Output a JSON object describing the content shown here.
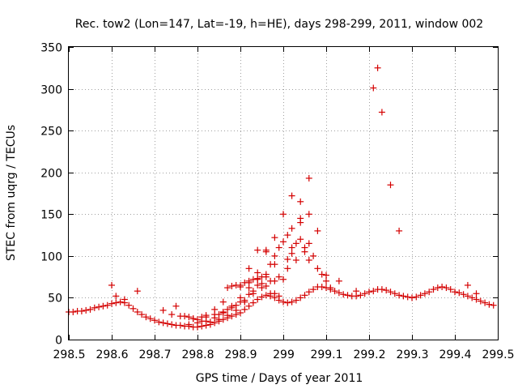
{
  "chart_data": {
    "type": "scatter",
    "title": "Rec. tow2 (Lon=147, Lat=-19, h=HE), days 298-299, 2011, window 002",
    "xlabel": "GPS time / Days of year 2011",
    "ylabel": "STEC from uqrg / TECUs",
    "xlim": [
      298.5,
      299.5
    ],
    "ylim": [
      0,
      350
    ],
    "xticks": [
      298.5,
      298.6,
      298.7,
      298.8,
      298.9,
      299,
      299.1,
      299.2,
      299.3,
      299.4,
      299.5
    ],
    "xtick_labels": [
      "298.5",
      "298.6",
      "298.7",
      "298.8",
      "298.9",
      "299",
      "299.1",
      "299.2",
      "299.3",
      "299.4",
      "299.5"
    ],
    "yticks": [
      0,
      50,
      100,
      150,
      200,
      250,
      300,
      350
    ],
    "ytick_labels": [
      "0",
      "50",
      "100",
      "150",
      "200",
      "250",
      "300",
      "350"
    ],
    "grid": true,
    "marker": "+",
    "color": "#d40000",
    "x": [
      298.5,
      298.51,
      298.52,
      298.53,
      298.54,
      298.55,
      298.56,
      298.57,
      298.58,
      298.59,
      298.6,
      298.61,
      298.62,
      298.63,
      298.64,
      298.65,
      298.66,
      298.67,
      298.68,
      298.69,
      298.7,
      298.71,
      298.72,
      298.73,
      298.74,
      298.75,
      298.76,
      298.77,
      298.78,
      298.79,
      298.8,
      298.81,
      298.82,
      298.83,
      298.84,
      298.85,
      298.86,
      298.87,
      298.88,
      298.89,
      298.9,
      298.91,
      298.92,
      298.93,
      298.94,
      298.95,
      298.96,
      298.97,
      298.98,
      298.99,
      299.0,
      299.01,
      299.02,
      299.03,
      299.04,
      299.05,
      299.06,
      299.07,
      299.08,
      299.09,
      299.1,
      299.11,
      299.12,
      299.13,
      299.14,
      299.15,
      299.16,
      299.17,
      299.18,
      299.19,
      299.2,
      299.21,
      299.22,
      299.23,
      299.24,
      299.25,
      299.26,
      299.27,
      299.28,
      299.29,
      299.3,
      299.31,
      299.32,
      299.33,
      299.34,
      299.35,
      299.36,
      299.37,
      299.38,
      299.39,
      299.4,
      299.41,
      299.42,
      299.43,
      299.44,
      299.45,
      299.46,
      299.47,
      299.48,
      299.49,
      298.6,
      298.61,
      298.63,
      298.66,
      298.72,
      298.74,
      298.76,
      298.78,
      298.79,
      298.81,
      298.82,
      298.84,
      298.86,
      298.87,
      298.88,
      298.89,
      298.9,
      298.91,
      298.92,
      298.93,
      298.94,
      298.95,
      298.96,
      298.97,
      298.98,
      298.99,
      299.0,
      299.01,
      299.02,
      299.03,
      299.04,
      299.05,
      299.06,
      298.85,
      298.87,
      298.89,
      298.91,
      298.93,
      298.95,
      298.97,
      298.99,
      299.01,
      299.03,
      299.05,
      299.07,
      299.09,
      299.11,
      298.92,
      298.94,
      298.96,
      298.98,
      298.8,
      298.82,
      298.84,
      298.86,
      298.88,
      298.9,
      298.92,
      298.94,
      298.96,
      298.98,
      299.0,
      299.02,
      299.04,
      299.06,
      299.08,
      298.75,
      298.77,
      298.79,
      298.81,
      298.83,
      298.85,
      298.87,
      298.89,
      298.91,
      298.93,
      298.95,
      298.97,
      298.99,
      299.01,
      298.78,
      298.8,
      298.82,
      298.84,
      298.86,
      298.88,
      298.9,
      298.92,
      298.94,
      298.96,
      298.98,
      299.0,
      299.02,
      299.04,
      299.06,
      299.08,
      299.1,
      299.21,
      299.22,
      299.23,
      299.25,
      299.27,
      298.9,
      298.92,
      298.94,
      298.96,
      298.98,
      299.02,
      299.04,
      299.06,
      299.1,
      299.13,
      299.17,
      299.43,
      299.45
    ],
    "y": [
      33,
      33,
      34,
      34,
      35,
      36,
      38,
      39,
      40,
      41,
      43,
      44,
      45,
      44,
      41,
      37,
      33,
      30,
      27,
      25,
      23,
      21,
      20,
      19,
      18,
      17,
      17,
      16,
      16,
      15,
      15,
      16,
      17,
      18,
      20,
      22,
      24,
      26,
      28,
      30,
      32,
      36,
      40,
      44,
      48,
      51,
      53,
      52,
      50,
      47,
      45,
      44,
      45,
      47,
      50,
      53,
      57,
      60,
      63,
      63,
      62,
      60,
      58,
      56,
      54,
      53,
      52,
      52,
      53,
      55,
      57,
      58,
      60,
      60,
      59,
      57,
      55,
      53,
      52,
      51,
      50,
      51,
      53,
      55,
      57,
      60,
      62,
      63,
      62,
      60,
      57,
      56,
      54,
      52,
      50,
      48,
      46,
      44,
      42,
      41,
      65,
      52,
      48,
      58,
      35,
      30,
      28,
      27,
      25,
      27,
      29,
      36,
      45,
      62,
      64,
      65,
      63,
      68,
      70,
      72,
      73,
      67,
      64,
      55,
      55,
      52,
      72,
      96,
      103,
      115,
      120,
      110,
      95,
      30,
      36,
      41,
      47,
      55,
      62,
      70,
      75,
      85,
      95,
      105,
      100,
      78,
      62,
      85,
      107,
      107,
      100,
      24,
      27,
      30,
      33,
      38,
      45,
      54,
      65,
      78,
      90,
      117,
      133,
      145,
      150,
      130,
      40,
      28,
      25,
      22,
      21,
      24,
      29,
      35,
      45,
      58,
      75,
      90,
      110,
      125,
      18,
      20,
      22,
      26,
      32,
      40,
      50,
      62,
      80,
      105,
      122,
      150,
      172,
      165,
      193,
      85,
      70,
      301,
      325,
      272,
      185,
      130,
      65,
      68,
      72,
      75,
      70,
      110,
      140,
      115,
      77,
      70,
      58,
      65,
      55
    ]
  }
}
